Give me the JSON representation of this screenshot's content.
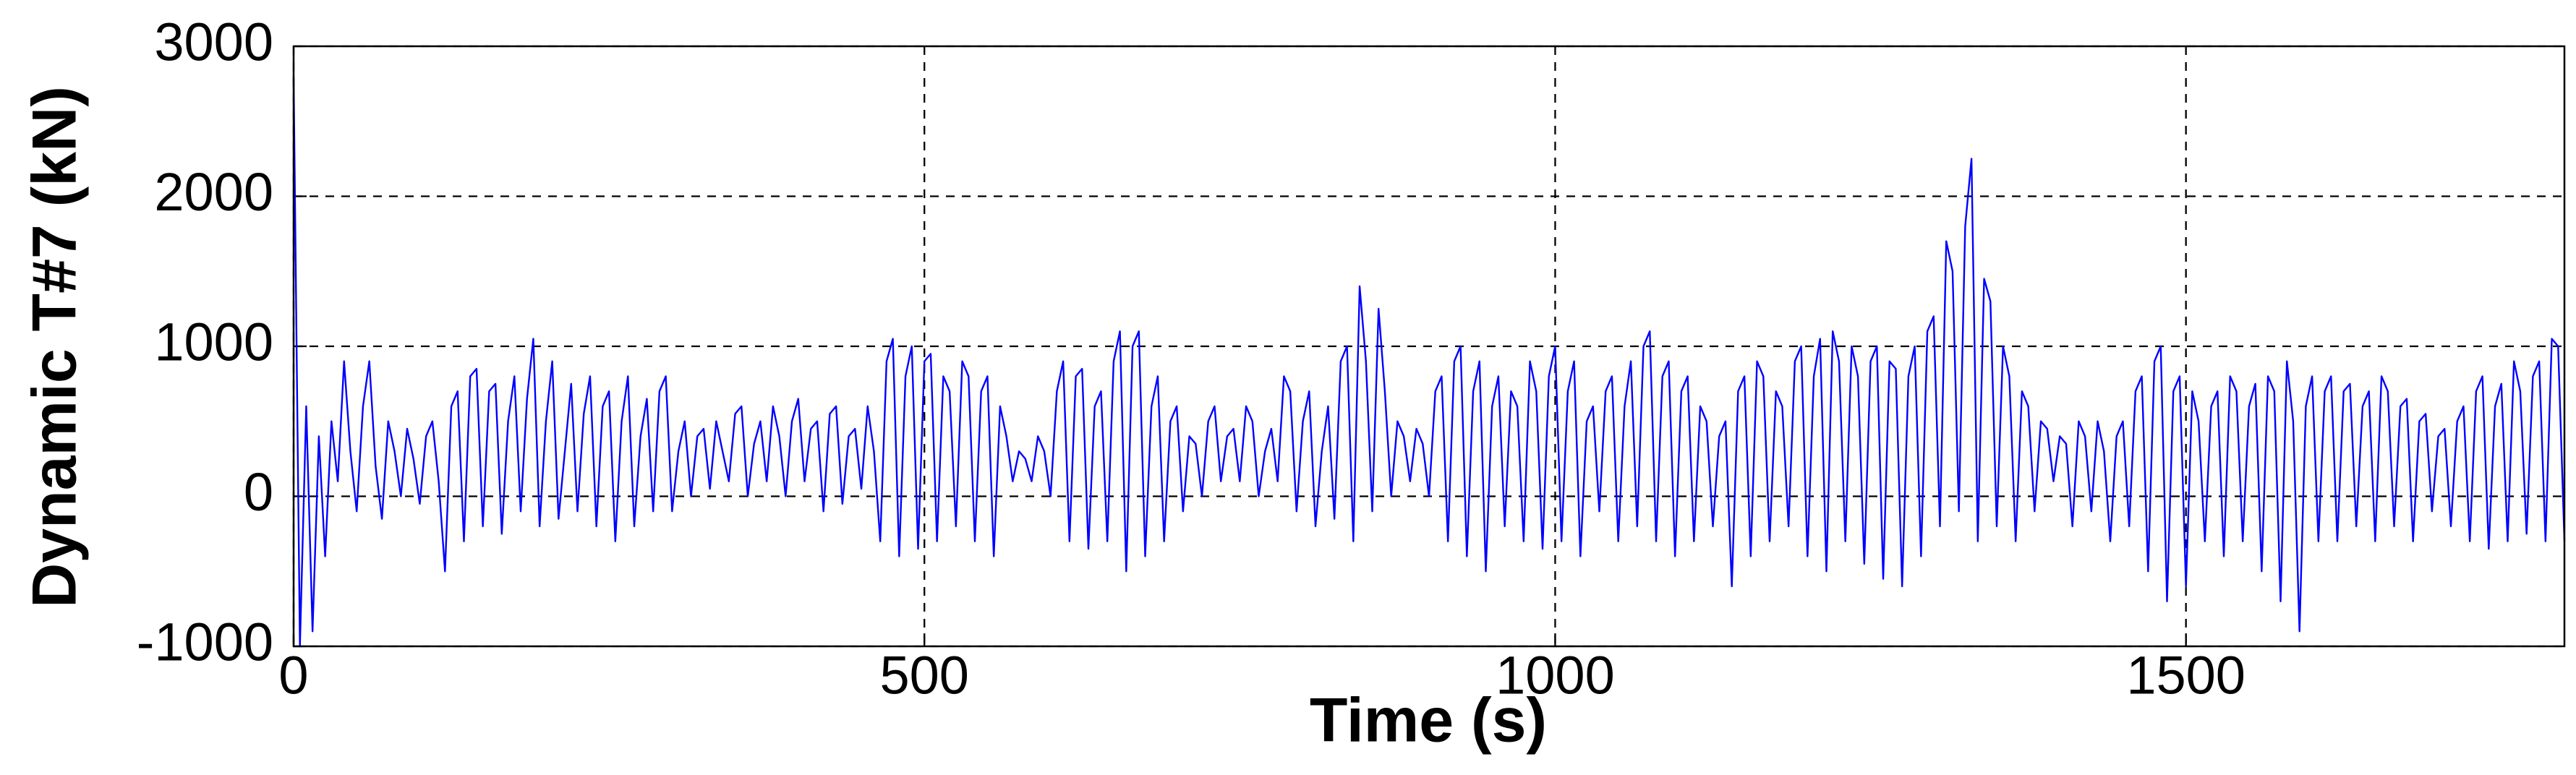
{
  "chart_data": {
    "type": "line",
    "x_label": "Time (s)",
    "y_label": "Dynamic T#7 (kN)",
    "xlim": [
      0,
      1800
    ],
    "xticks": [
      0,
      500,
      1000,
      1500
    ],
    "ylim": [
      -1000,
      3000
    ],
    "yticks": [
      -1000,
      0,
      1000,
      2000,
      3000
    ],
    "grid": true,
    "x": [
      0,
      5,
      10,
      15,
      20,
      25,
      30,
      35,
      40,
      45,
      50,
      55,
      60,
      65,
      70,
      75,
      80,
      85,
      90,
      95,
      100,
      105,
      110,
      115,
      120,
      125,
      130,
      135,
      140,
      145,
      150,
      155,
      160,
      165,
      170,
      175,
      180,
      185,
      190,
      195,
      200,
      205,
      210,
      215,
      220,
      225,
      230,
      235,
      240,
      245,
      250,
      255,
      260,
      265,
      270,
      275,
      280,
      285,
      290,
      295,
      300,
      305,
      310,
      315,
      320,
      325,
      330,
      335,
      340,
      345,
      350,
      355,
      360,
      365,
      370,
      375,
      380,
      385,
      390,
      395,
      400,
      405,
      410,
      415,
      420,
      425,
      430,
      435,
      440,
      445,
      450,
      455,
      460,
      465,
      470,
      475,
      480,
      485,
      490,
      495,
      500,
      505,
      510,
      515,
      520,
      525,
      530,
      535,
      540,
      545,
      550,
      555,
      560,
      565,
      570,
      575,
      580,
      585,
      590,
      595,
      600,
      605,
      610,
      615,
      620,
      625,
      630,
      635,
      640,
      645,
      650,
      655,
      660,
      665,
      670,
      675,
      680,
      685,
      690,
      695,
      700,
      705,
      710,
      715,
      720,
      725,
      730,
      735,
      740,
      745,
      750,
      755,
      760,
      765,
      770,
      775,
      780,
      785,
      790,
      795,
      800,
      805,
      810,
      815,
      820,
      825,
      830,
      835,
      840,
      845,
      850,
      855,
      860,
      865,
      870,
      875,
      880,
      885,
      890,
      895,
      900,
      905,
      910,
      915,
      920,
      925,
      930,
      935,
      940,
      945,
      950,
      955,
      960,
      965,
      970,
      975,
      980,
      985,
      990,
      995,
      1000,
      1005,
      1010,
      1015,
      1020,
      1025,
      1030,
      1035,
      1040,
      1045,
      1050,
      1055,
      1060,
      1065,
      1070,
      1075,
      1080,
      1085,
      1090,
      1095,
      1100,
      1105,
      1110,
      1115,
      1120,
      1125,
      1130,
      1135,
      1140,
      1145,
      1150,
      1155,
      1160,
      1165,
      1170,
      1175,
      1180,
      1185,
      1190,
      1195,
      1200,
      1205,
      1210,
      1215,
      1220,
      1225,
      1230,
      1235,
      1240,
      1245,
      1250,
      1255,
      1260,
      1265,
      1270,
      1275,
      1280,
      1285,
      1290,
      1295,
      1300,
      1305,
      1310,
      1315,
      1320,
      1325,
      1330,
      1335,
      1340,
      1345,
      1350,
      1355,
      1360,
      1365,
      1370,
      1375,
      1380,
      1385,
      1390,
      1395,
      1400,
      1405,
      1410,
      1415,
      1420,
      1425,
      1430,
      1435,
      1440,
      1445,
      1450,
      1455,
      1460,
      1465,
      1470,
      1475,
      1480,
      1485,
      1490,
      1495,
      1500,
      1505,
      1510,
      1515,
      1520,
      1525,
      1530,
      1535,
      1540,
      1545,
      1550,
      1555,
      1560,
      1565,
      1570,
      1575,
      1580,
      1585,
      1590,
      1595,
      1600,
      1605,
      1610,
      1615,
      1620,
      1625,
      1630,
      1635,
      1640,
      1645,
      1650,
      1655,
      1660,
      1665,
      1670,
      1675,
      1680,
      1685,
      1690,
      1695,
      1700,
      1705,
      1710,
      1715,
      1720,
      1725,
      1730,
      1735,
      1740,
      1745,
      1750,
      1755,
      1760,
      1765,
      1770,
      1775,
      1780,
      1785,
      1790,
      1795,
      1800
    ],
    "series": [
      {
        "color": "#0000ff",
        "values": [
          2800,
          -1000,
          600,
          -900,
          400,
          -400,
          500,
          100,
          900,
          300,
          -100,
          600,
          900,
          200,
          -150,
          500,
          300,
          0,
          450,
          250,
          -50,
          400,
          500,
          100,
          -500,
          600,
          700,
          -300,
          800,
          850,
          -200,
          700,
          750,
          -250,
          500,
          800,
          -100,
          650,
          1050,
          -200,
          500,
          900,
          -150,
          300,
          750,
          -100,
          550,
          800,
          -200,
          600,
          700,
          -300,
          500,
          800,
          -200,
          400,
          650,
          -100,
          700,
          800,
          -100,
          300,
          500,
          0,
          400,
          450,
          50,
          500,
          300,
          100,
          550,
          600,
          0,
          350,
          500,
          100,
          600,
          400,
          0,
          500,
          650,
          100,
          450,
          500,
          -100,
          550,
          600,
          -50,
          400,
          450,
          50,
          600,
          300,
          -300,
          900,
          1050,
          -400,
          800,
          1000,
          -350,
          900,
          950,
          -300,
          800,
          700,
          -200,
          900,
          800,
          -300,
          700,
          800,
          -400,
          600,
          400,
          100,
          300,
          250,
          100,
          400,
          300,
          0,
          700,
          900,
          -300,
          800,
          850,
          -350,
          600,
          700,
          -300,
          900,
          1100,
          -500,
          1000,
          1100,
          -400,
          600,
          800,
          -300,
          500,
          600,
          -100,
          400,
          350,
          0,
          500,
          600,
          100,
          400,
          450,
          100,
          600,
          500,
          0,
          300,
          450,
          100,
          800,
          700,
          -100,
          500,
          700,
          -200,
          300,
          600,
          -150,
          900,
          1000,
          -300,
          1400,
          900,
          -100,
          1250,
          700,
          0,
          500,
          400,
          100,
          450,
          350,
          0,
          700,
          800,
          -300,
          900,
          1000,
          -400,
          700,
          900,
          -500,
          600,
          800,
          -200,
          700,
          600,
          -300,
          900,
          700,
          -350,
          800,
          1000,
          -300,
          700,
          900,
          -400,
          500,
          600,
          -100,
          700,
          800,
          -300,
          600,
          900,
          -200,
          1000,
          1100,
          -300,
          800,
          900,
          -400,
          700,
          800,
          -300,
          600,
          500,
          -200,
          400,
          500,
          -600,
          700,
          800,
          -400,
          900,
          800,
          -300,
          700,
          600,
          -200,
          900,
          1000,
          -400,
          800,
          1050,
          -500,
          1100,
          900,
          -300,
          1000,
          800,
          -450,
          900,
          1000,
          -550,
          900,
          850,
          -600,
          800,
          1000,
          -400,
          1100,
          1200,
          -200,
          1700,
          1500,
          -100,
          1800,
          2250,
          -300,
          1450,
          1300,
          -200,
          1000,
          800,
          -300,
          700,
          600,
          -100,
          500,
          450,
          100,
          400,
          350,
          -200,
          500,
          400,
          -100,
          500,
          300,
          -300,
          400,
          500,
          -200,
          700,
          800,
          -500,
          900,
          1000,
          -700,
          700,
          800,
          -600,
          700,
          500,
          -300,
          600,
          700,
          -400,
          800,
          700,
          -300,
          600,
          750,
          -500,
          800,
          700,
          -700,
          900,
          500,
          -900,
          600,
          800,
          -300,
          700,
          800,
          -300,
          700,
          750,
          -200,
          600,
          700,
          -300,
          800,
          700,
          -200,
          600,
          650,
          -300,
          500,
          550,
          -100,
          400,
          450,
          -200,
          500,
          600,
          -300,
          700,
          800,
          -350,
          600,
          750,
          -300,
          900,
          700,
          -250,
          800,
          900,
          -300,
          1050,
          1000,
          -300
        ]
      }
    ]
  }
}
